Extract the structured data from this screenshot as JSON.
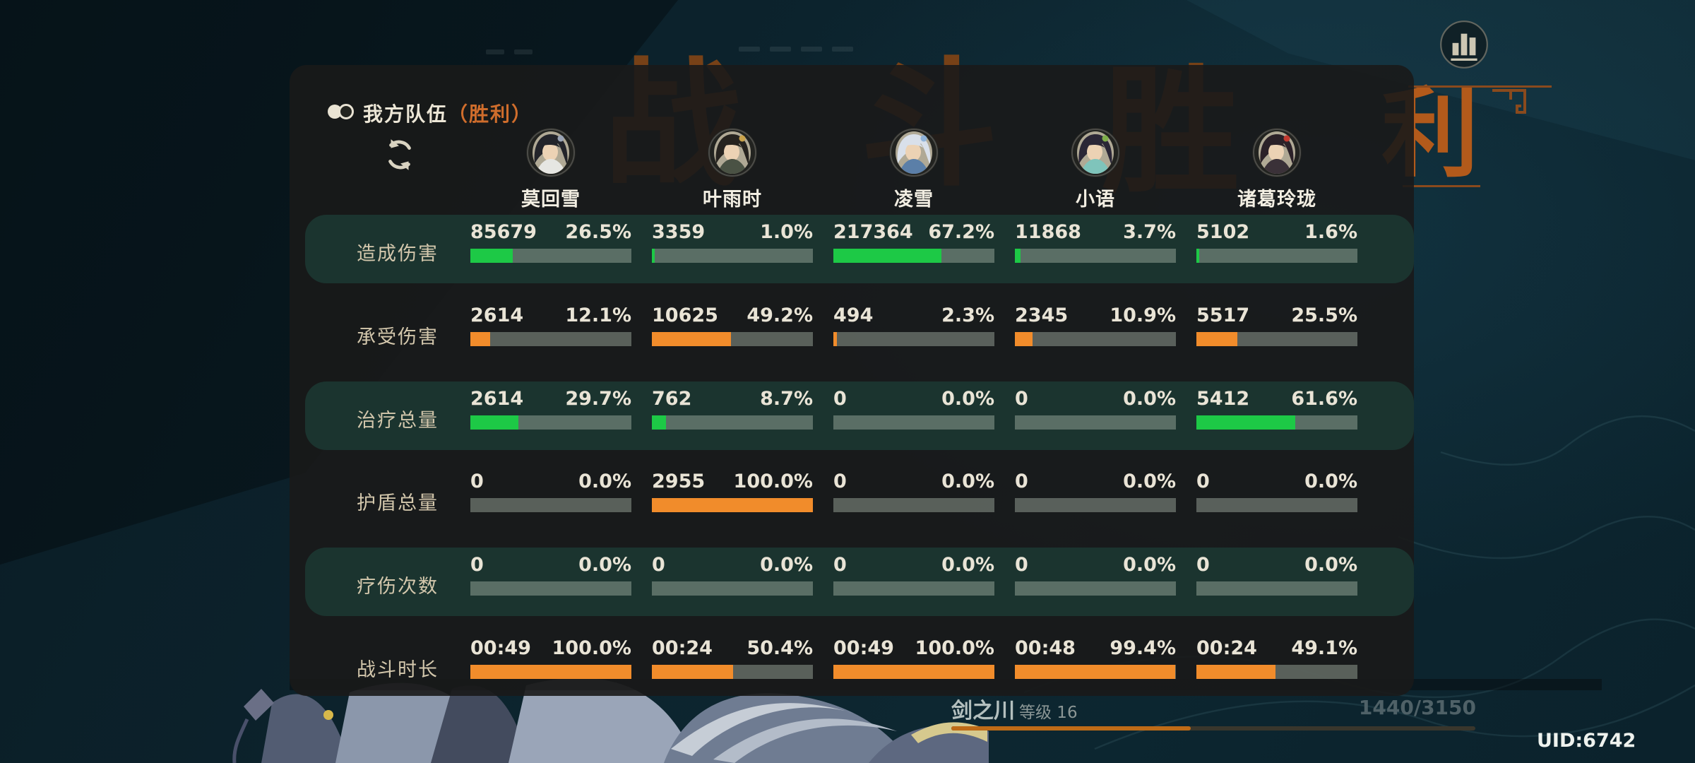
{
  "header": {
    "team": "我方队伍",
    "result": "（胜利）"
  },
  "background": {
    "victory_chars": [
      "战",
      "斗",
      "胜",
      "利"
    ]
  },
  "characters": [
    {
      "name": "莫回雪",
      "portrait": {
        "hair": "#23242a",
        "cloth": "#e6e6e2",
        "accent": "#9aa4b5"
      }
    },
    {
      "name": "叶雨时",
      "portrait": {
        "hair": "#26231f",
        "cloth": "#4a5244",
        "accent": "#c9a24a"
      }
    },
    {
      "name": "凌雪",
      "portrait": {
        "hair": "#d9e0ea",
        "cloth": "#5b7fa8",
        "accent": "#8fb3d9"
      }
    },
    {
      "name": "小语",
      "portrait": {
        "hair": "#2a2636",
        "cloth": "#7fc4bb",
        "accent": "#7fae4a"
      }
    },
    {
      "name": "诸葛玲珑",
      "portrait": {
        "hair": "#2b2128",
        "cloth": "#3a3138",
        "accent": "#c23a30"
      }
    }
  ],
  "stats": {
    "rows": [
      {
        "label": "造成伤害",
        "bar_color": "green",
        "cells": [
          {
            "value": "85679",
            "pct": "26.5%",
            "fill": 26.5
          },
          {
            "value": "3359",
            "pct": "1.0%",
            "fill": 1.0
          },
          {
            "value": "217364",
            "pct": "67.2%",
            "fill": 67.2
          },
          {
            "value": "11868",
            "pct": "3.7%",
            "fill": 3.7
          },
          {
            "value": "5102",
            "pct": "1.6%",
            "fill": 1.6
          }
        ]
      },
      {
        "label": "承受伤害",
        "bar_color": "orange",
        "cells": [
          {
            "value": "2614",
            "pct": "12.1%",
            "fill": 12.1
          },
          {
            "value": "10625",
            "pct": "49.2%",
            "fill": 49.2
          },
          {
            "value": "494",
            "pct": "2.3%",
            "fill": 2.3
          },
          {
            "value": "2345",
            "pct": "10.9%",
            "fill": 10.9
          },
          {
            "value": "5517",
            "pct": "25.5%",
            "fill": 25.5
          }
        ]
      },
      {
        "label": "治疗总量",
        "bar_color": "green",
        "cells": [
          {
            "value": "2614",
            "pct": "29.7%",
            "fill": 29.7
          },
          {
            "value": "762",
            "pct": "8.7%",
            "fill": 8.7
          },
          {
            "value": "0",
            "pct": "0.0%",
            "fill": 0
          },
          {
            "value": "0",
            "pct": "0.0%",
            "fill": 0
          },
          {
            "value": "5412",
            "pct": "61.6%",
            "fill": 61.6
          }
        ]
      },
      {
        "label": "护盾总量",
        "bar_color": "orange",
        "cells": [
          {
            "value": "0",
            "pct": "0.0%",
            "fill": 0
          },
          {
            "value": "2955",
            "pct": "100.0%",
            "fill": 100
          },
          {
            "value": "0",
            "pct": "0.0%",
            "fill": 0
          },
          {
            "value": "0",
            "pct": "0.0%",
            "fill": 0
          },
          {
            "value": "0",
            "pct": "0.0%",
            "fill": 0
          }
        ]
      },
      {
        "label": "疗伤次数",
        "bar_color": "orange",
        "cells": [
          {
            "value": "0",
            "pct": "0.0%",
            "fill": 0
          },
          {
            "value": "0",
            "pct": "0.0%",
            "fill": 0
          },
          {
            "value": "0",
            "pct": "0.0%",
            "fill": 0
          },
          {
            "value": "0",
            "pct": "0.0%",
            "fill": 0
          },
          {
            "value": "0",
            "pct": "0.0%",
            "fill": 0
          }
        ]
      },
      {
        "label": "战斗时长",
        "bar_color": "orange",
        "cells": [
          {
            "value": "00:49",
            "pct": "100.0%",
            "fill": 100
          },
          {
            "value": "00:24",
            "pct": "50.4%",
            "fill": 50.4
          },
          {
            "value": "00:49",
            "pct": "100.0%",
            "fill": 100
          },
          {
            "value": "00:48",
            "pct": "99.4%",
            "fill": 99.4
          },
          {
            "value": "00:24",
            "pct": "49.1%",
            "fill": 49.1
          }
        ]
      }
    ]
  },
  "footer": {
    "zone": "剑之川",
    "level": "等级 16",
    "xp": "1440/3150",
    "xp_fill": 45.7,
    "uid": "UID:6742"
  },
  "colors": {
    "bar_green": "#1dc946",
    "bar_orange": "#f18c2b",
    "victory_orange": "#cf6d2c",
    "band_teal": "#1b342f",
    "panel": "rgba(25,26,25,0.90)"
  }
}
